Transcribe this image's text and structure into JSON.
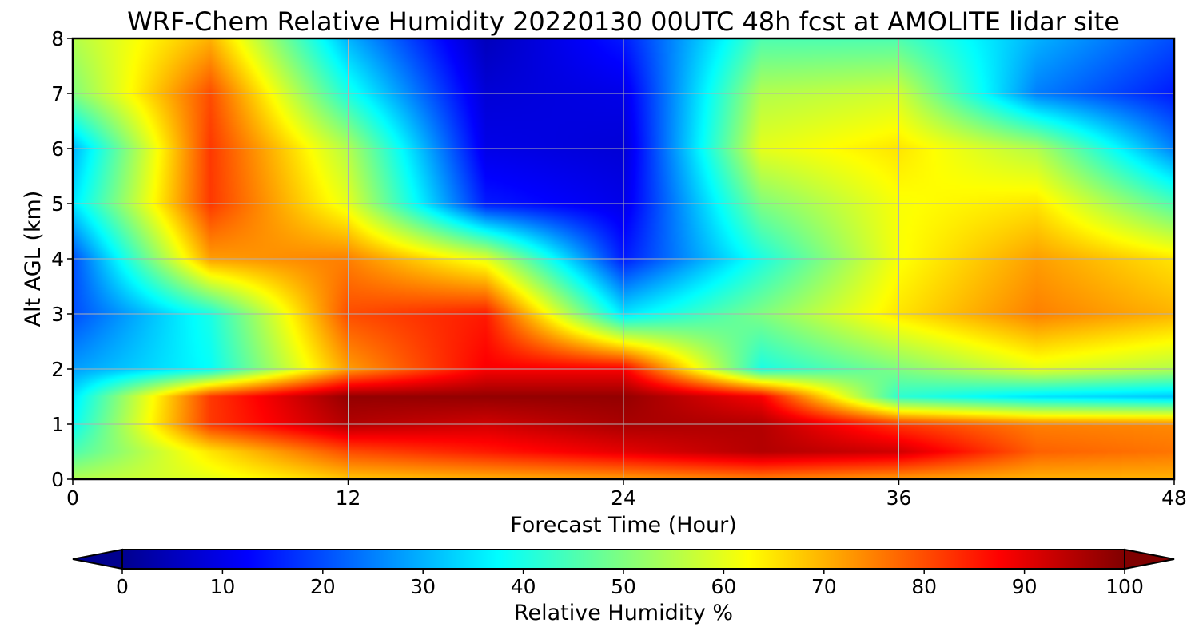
{
  "chart_data": {
    "type": "heatmap",
    "title": "WRF-Chem Relative Humidity 20220130 00UTC 48h fcst at AMOLITE lidar site",
    "xlabel": "Forecast Time (Hour)",
    "ylabel": "Alt AGL (km)",
    "xlim": [
      0,
      48
    ],
    "ylim": [
      0,
      8
    ],
    "xticks": [
      0,
      12,
      24,
      36,
      48
    ],
    "yticks": [
      0,
      1,
      2,
      3,
      4,
      5,
      6,
      7,
      8
    ],
    "grid": true,
    "colormap": "jet",
    "colorbar": {
      "label": "Relative Humidity %",
      "orientation": "horizontal",
      "location": "bottom",
      "extend": "both",
      "range": [
        0,
        100
      ],
      "ticks": [
        0,
        10,
        20,
        30,
        40,
        50,
        60,
        70,
        80,
        90,
        100
      ]
    },
    "x": [
      0,
      6,
      12,
      18,
      24,
      30,
      36,
      42,
      48
    ],
    "y": [
      0,
      0.5,
      1,
      1.5,
      2,
      3,
      4,
      5,
      6,
      7,
      8
    ],
    "z": [
      [
        55,
        60,
        68,
        70,
        72,
        75,
        72,
        70,
        70
      ],
      [
        45,
        65,
        80,
        85,
        90,
        95,
        92,
        78,
        76
      ],
      [
        38,
        82,
        95,
        92,
        96,
        95,
        82,
        75,
        74
      ],
      [
        35,
        82,
        98,
        98,
        98,
        88,
        42,
        35,
        32
      ],
      [
        28,
        38,
        72,
        88,
        88,
        40,
        50,
        60,
        55
      ],
      [
        20,
        40,
        80,
        85,
        35,
        50,
        65,
        75,
        70
      ],
      [
        20,
        72,
        75,
        60,
        15,
        40,
        62,
        72,
        65
      ],
      [
        35,
        82,
        60,
        15,
        10,
        50,
        62,
        65,
        45
      ],
      [
        30,
        82,
        55,
        10,
        8,
        60,
        65,
        55,
        25
      ],
      [
        50,
        80,
        40,
        8,
        10,
        55,
        58,
        25,
        15
      ],
      [
        55,
        70,
        30,
        5,
        15,
        45,
        45,
        30,
        20
      ]
    ]
  }
}
